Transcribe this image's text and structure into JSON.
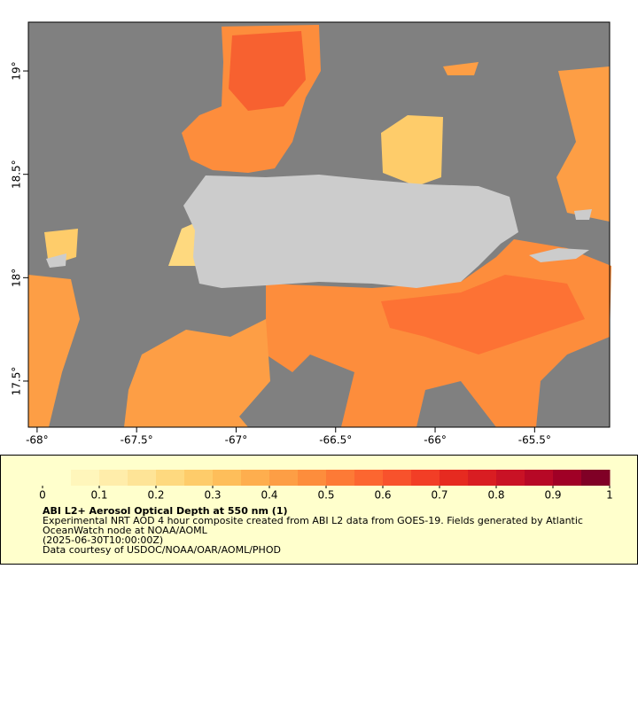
{
  "map": {
    "xlim": [
      -68.044,
      -65.123
    ],
    "ylim": [
      17.277,
      19.236
    ],
    "xticks": [
      {
        "value": -68,
        "label": "-68°"
      },
      {
        "value": -67.5,
        "label": "-67.5°"
      },
      {
        "value": -67,
        "label": "-67°"
      },
      {
        "value": -66.5,
        "label": "-66.5°"
      },
      {
        "value": -66,
        "label": "-66°"
      },
      {
        "value": -65.5,
        "label": "-65.5°"
      }
    ],
    "yticks": [
      {
        "value": 19,
        "label": "19°"
      },
      {
        "value": 18.5,
        "label": "18.5°"
      },
      {
        "value": 18,
        "label": "18°"
      },
      {
        "value": 17.5,
        "label": "17.5°"
      }
    ]
  },
  "colorbar": {
    "lim": [
      0,
      1
    ],
    "ticks": [
      0,
      0.1,
      0.2,
      0.3,
      0.4,
      0.5,
      0.6,
      0.7,
      0.8,
      0.9,
      1
    ],
    "colors": [
      "#ffffcc",
      "#fff6bb",
      "#ffedaa",
      "#fee497",
      "#fed97f",
      "#fecc6a",
      "#febe5a",
      "#feae4e",
      "#fd9e45",
      "#fd8d3c",
      "#fd7a36",
      "#fc6630",
      "#f8522c",
      "#f23e26",
      "#e62a20",
      "#d91d22",
      "#c91225",
      "#b70826",
      "#a00026",
      "#800026"
    ]
  },
  "title": "ABI L2+ Aerosol Optical Depth at 550 nm (1)",
  "description": [
    "Experimental NRT AOD 4 hour composite created from ABI L2 data from GOES-19. Fields generated by Atlantic",
    "OceanWatch node at NOAA/AOML",
    "(2025-06-30T10:00:00Z)",
    "Data courtesy of USDOC/NOAA/OAR/AOML/PHOD"
  ]
}
